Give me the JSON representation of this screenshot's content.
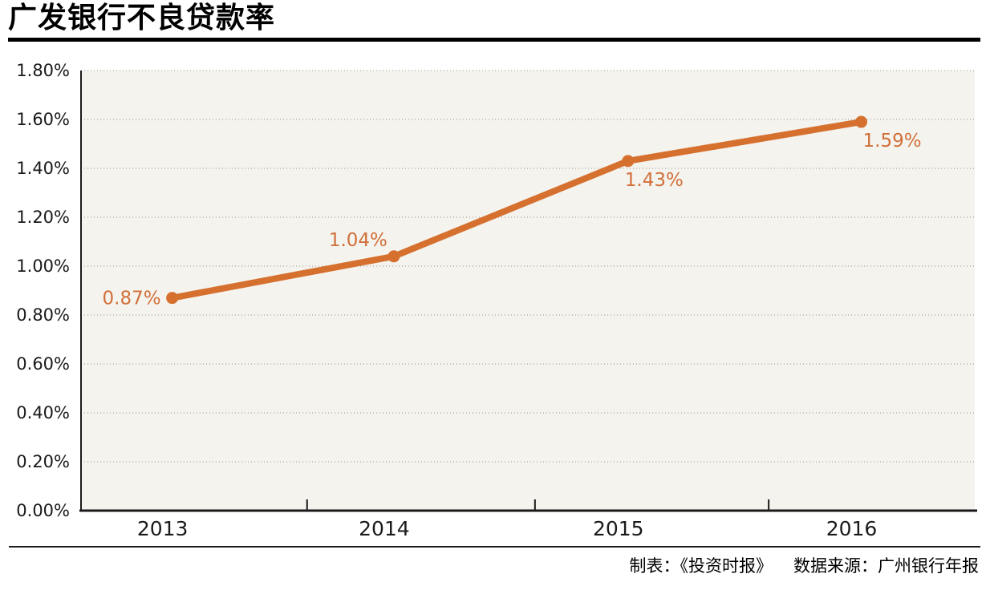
{
  "title": "广发银行不良贷款率",
  "footer": {
    "credit": "制表：《投资时报》",
    "source": "数据来源：广州银行年报"
  },
  "colors": {
    "line": "#D6702E",
    "point": "#D6702E",
    "point_label": "#D2703A",
    "plot_bg": "#F4F3EE",
    "grid": "#8f8f8f",
    "axis": "#1a1a1a",
    "tick_label": "#1a1a1a"
  },
  "chart_data": {
    "type": "line",
    "title": "广发银行不良贷款率",
    "categories": [
      "2013",
      "2014",
      "2015",
      "2016"
    ],
    "values": [
      0.87,
      1.04,
      1.43,
      1.59
    ],
    "point_labels": [
      "0.87%",
      "1.04%",
      "1.43%",
      "1.59%"
    ],
    "series_name": "不良贷款率",
    "xlabel": "",
    "ylabel": "",
    "ylim": [
      0,
      1.8
    ],
    "ytick_step": 0.2,
    "ytick_labels": [
      "0.00%",
      "0.20%",
      "0.40%",
      "0.60%",
      "0.80%",
      "1.00%",
      "1.20%",
      "1.40%",
      "1.60%",
      "1.80%"
    ],
    "grid": "horizontal-dotted",
    "legend": "none"
  }
}
